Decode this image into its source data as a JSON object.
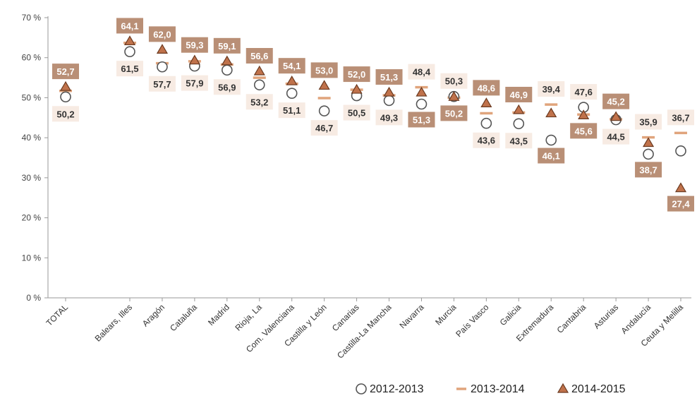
{
  "chart_data": {
    "type": "scatter",
    "title": "",
    "xlabel": "",
    "ylabel": "",
    "ylim": [
      0,
      70
    ],
    "y_ticks": [
      "0 %",
      "10 %",
      "20 %",
      "30 %",
      "40 %",
      "50 %",
      "60 %",
      "70 %"
    ],
    "categories": [
      "TOTAL",
      "Balears, Illes",
      "Aragón",
      "Cataluña",
      "Madrid",
      "Rioja, La",
      "Com. Valenciana",
      "Castilla y León",
      "Canarias",
      "Castilla-La Mancha",
      "Navarra",
      "Murcia",
      "País Vasco",
      "Galicia",
      "Extremadura",
      "Cantabria",
      "Asturias",
      "Andalucía",
      "Ceuta y Melilla"
    ],
    "grid": false,
    "legend_position": "bottom",
    "series": [
      {
        "name": "2012-2013",
        "marker": "circle",
        "values": [
          50.2,
          61.5,
          57.7,
          57.9,
          56.9,
          53.2,
          51.1,
          46.7,
          50.5,
          49.3,
          48.4,
          50.3,
          43.6,
          43.5,
          39.4,
          47.6,
          44.5,
          35.9,
          36.7
        ],
        "labels": [
          "50,2",
          "61,5",
          "57,7",
          "57,9",
          "56,9",
          "53,2",
          "51,1",
          "46,7",
          "50,5",
          "49,3",
          "48,4",
          "50,3",
          "43,6",
          "43,5",
          "39,4",
          "47,6",
          "44,5",
          "35,9",
          "36,7"
        ]
      },
      {
        "name": "2013-2014",
        "marker": "dash",
        "values": [
          51.7,
          63.7,
          58.6,
          59.1,
          58.3,
          55.0,
          53.5,
          49.9,
          52.0,
          50.6,
          52.6,
          50.0,
          46.1,
          46.3,
          48.3,
          45.8,
          44.6,
          40.1,
          41.2
        ]
      },
      {
        "name": "2014-2015",
        "marker": "triangle",
        "values": [
          52.7,
          64.1,
          62.0,
          59.3,
          59.1,
          56.6,
          54.1,
          53.0,
          52.0,
          51.3,
          51.3,
          50.2,
          48.6,
          46.9,
          46.1,
          45.6,
          45.2,
          38.7,
          27.4
        ],
        "labels": [
          "52,7",
          "64,1",
          "62,0",
          "59,3",
          "59,1",
          "56,6",
          "54,1",
          "53,0",
          "52,0",
          "51,3",
          "51,3",
          "50,2",
          "48,6",
          "46,9",
          "46,1",
          "45,6",
          "45,2",
          "38,7",
          "27,4"
        ]
      }
    ],
    "colors": {
      "circle_stroke": "#555555",
      "dash": "#e0a47c",
      "triangle_fill": "#c0724b",
      "triangle_stroke": "#6b3a20",
      "dark_box": "#b98f76",
      "dark_box_text": "#ffffff",
      "light_box": "#f7ebe3",
      "light_box_text": "#333333",
      "axis": "#9a9a9a"
    }
  }
}
